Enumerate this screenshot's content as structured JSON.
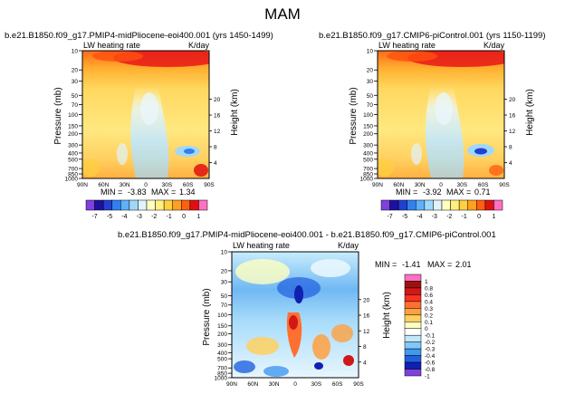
{
  "page_title": "MAM",
  "chart_data": [
    {
      "type": "heatmap",
      "title": "b.e21.B1850.f09_g17.PMIP4-midPliocene-eoi400.001  (yrs 1450-1499)",
      "left_label": "LW heating rate",
      "right_label": "K/day",
      "xlabel": "",
      "ylabel": "Pressure (mb)",
      "ylabel_right": "Height (km)",
      "x_ticks": [
        "90N",
        "60N",
        "30N",
        "0",
        "30S",
        "60S",
        "90S"
      ],
      "y_ticks": [
        "10",
        "20",
        "30",
        "50",
        "70",
        "100",
        "150",
        "200",
        "300",
        "400",
        "500",
        "700",
        "850",
        "1000"
      ],
      "height_ticks": [
        "20",
        "16",
        "12",
        "8",
        "4"
      ],
      "ylim": [
        1000,
        10
      ],
      "stats": {
        "min_label": "MIN =",
        "min": "-3.83",
        "max_label": "MAX =",
        "max": "1.34"
      },
      "colorbar": {
        "labels": [
          "-7",
          "-5",
          "-4",
          "-3",
          "-2",
          "-1",
          "0",
          "1"
        ],
        "colors": [
          "#7f40e0",
          "#2010a0",
          "#2040d0",
          "#3080f0",
          "#60b0f8",
          "#a0d8fc",
          "#e0f4fd",
          "#ffffc0",
          "#fff080",
          "#ffd040",
          "#ffa020",
          "#ff6010",
          "#e01010",
          "#ff70c0"
        ]
      }
    },
    {
      "type": "heatmap",
      "title": "b.e21.B1850.f09_g17.CMIP6-piControl.001  (yrs 1150-1199)",
      "left_label": "LW heating rate",
      "right_label": "K/day",
      "xlabel": "",
      "ylabel": "Pressure (mb)",
      "ylabel_right": "Height (km)",
      "x_ticks": [
        "90N",
        "60N",
        "30N",
        "0",
        "30S",
        "60S",
        "90S"
      ],
      "y_ticks": [
        "10",
        "20",
        "30",
        "50",
        "70",
        "100",
        "150",
        "200",
        "300",
        "400",
        "500",
        "700",
        "850",
        "1000"
      ],
      "height_ticks": [
        "20",
        "16",
        "12",
        "8",
        "4"
      ],
      "ylim": [
        1000,
        10
      ],
      "stats": {
        "min_label": "MIN =",
        "min": "-3.92",
        "max_label": "MAX =",
        "max": "0.71"
      },
      "colorbar": {
        "labels": [
          "-7",
          "-5",
          "-4",
          "-3",
          "-2",
          "-1",
          "0",
          "1"
        ],
        "colors": [
          "#7f40e0",
          "#2010a0",
          "#2040d0",
          "#3080f0",
          "#60b0f8",
          "#a0d8fc",
          "#e0f4fd",
          "#ffffc0",
          "#fff080",
          "#ffd040",
          "#ffa020",
          "#ff6010",
          "#e01010",
          "#ff70c0"
        ]
      }
    },
    {
      "type": "heatmap",
      "title": "b.e21.B1850.f09_g17.PMIP4-midPliocene-eoi400.001  -  b.e21.B1850.f09_g17.CMIP6-piControl.001",
      "left_label": "LW heating rate",
      "right_label": "K/day",
      "xlabel": "",
      "ylabel": "Pressure (mb)",
      "ylabel_right": "Height (km)",
      "x_ticks": [
        "90N",
        "60N",
        "30N",
        "0",
        "30S",
        "60S",
        "90S"
      ],
      "y_ticks": [
        "10",
        "20",
        "30",
        "50",
        "70",
        "100",
        "150",
        "200",
        "300",
        "400",
        "500",
        "700",
        "850",
        "1000"
      ],
      "height_ticks": [
        "20",
        "16",
        "12",
        "8",
        "4"
      ],
      "ylim": [
        1000,
        10
      ],
      "stats": {
        "min_label": "MIN =",
        "min": "-1.41",
        "max_label": "MAX =",
        "max": "2.01"
      },
      "colorbar": {
        "labels": [
          "1",
          "0.8",
          "0.6",
          "0.4",
          "0.3",
          "0.2",
          "0.1",
          "0",
          "-0.1",
          "-0.2",
          "-0.3",
          "-0.4",
          "-0.6",
          "-0.8",
          "-1"
        ],
        "colors": [
          "#ff70c0",
          "#a01010",
          "#d01818",
          "#ff3020",
          "#ff7030",
          "#ffa040",
          "#ffd060",
          "#ffffc0",
          "#ffffff",
          "#c0e8fc",
          "#80c8f8",
          "#4098f0",
          "#2060e0",
          "#1020b0",
          "#7f40e0"
        ]
      }
    }
  ]
}
